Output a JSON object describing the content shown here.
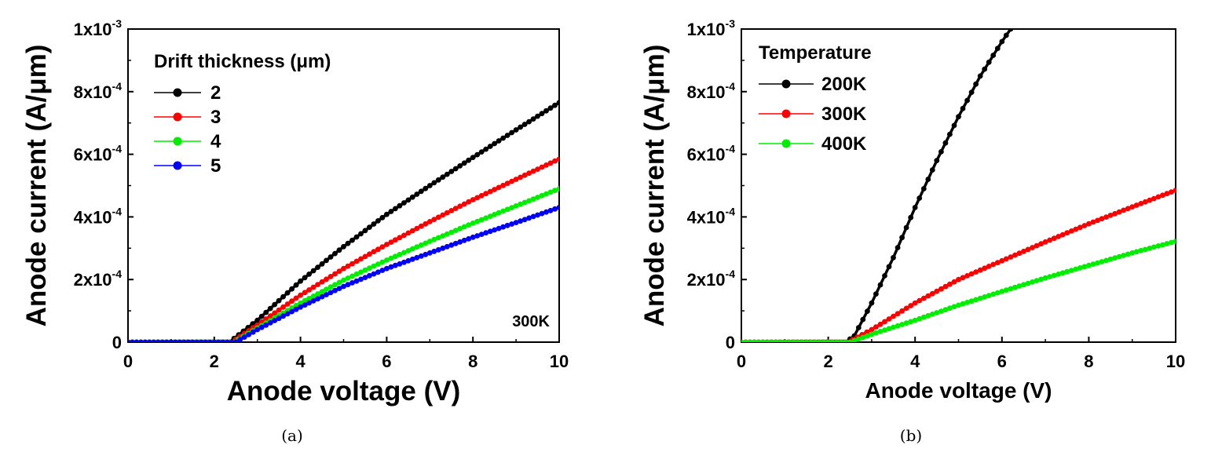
{
  "chart_data": [
    {
      "type": "line",
      "panel_label": "(a)",
      "xlabel": "Anode voltage (V)",
      "ylabel": "Anode current (A/μm)",
      "xlim": [
        0,
        10
      ],
      "ylim": [
        0,
        0.001
      ],
      "x_ticks": [
        "0",
        "2",
        "4",
        "6",
        "8",
        "10"
      ],
      "y_ticks": [
        {
          "value": 0,
          "mantissa": "0",
          "exp": ""
        },
        {
          "value": 0.0002,
          "mantissa": "2x10",
          "exp": "-4"
        },
        {
          "value": 0.0004,
          "mantissa": "4x10",
          "exp": "-4"
        },
        {
          "value": 0.0006,
          "mantissa": "6x10",
          "exp": "-4"
        },
        {
          "value": 0.0008,
          "mantissa": "8x10",
          "exp": "-4"
        },
        {
          "value": 0.001,
          "mantissa": "1x10",
          "exp": "-3"
        }
      ],
      "legend_title": "Drift thickness (μm)",
      "legend_position": "top-left",
      "annotation": "300K",
      "series": [
        {
          "name": "2",
          "color": "#000000",
          "x": [
            0,
            2.35,
            3,
            4,
            5,
            6,
            7,
            8,
            9,
            10
          ],
          "y": [
            0,
            0,
            7e-05,
            0.000195,
            0.000305,
            0.000408,
            0.0005,
            0.00059,
            0.000678,
            0.000765
          ]
        },
        {
          "name": "3",
          "color": "#ff0000",
          "x": [
            0,
            2.4,
            3,
            4,
            5,
            6,
            7,
            8,
            9,
            10
          ],
          "y": [
            0,
            0,
            5.5e-05,
            0.00015,
            0.000235,
            0.000312,
            0.000385,
            0.000455,
            0.00052,
            0.000585
          ]
        },
        {
          "name": "4",
          "color": "#00ee00",
          "x": [
            0,
            2.45,
            3,
            4,
            5,
            6,
            7,
            8,
            9,
            10
          ],
          "y": [
            0,
            0,
            4.5e-05,
            0.000125,
            0.000198,
            0.000262,
            0.000322,
            0.00038,
            0.000435,
            0.00049
          ]
        },
        {
          "name": "5",
          "color": "#0000ff",
          "x": [
            0,
            2.5,
            3,
            4,
            5,
            6,
            7,
            8,
            9,
            10
          ],
          "y": [
            0,
            0,
            4e-05,
            0.000112,
            0.000178,
            0.000235,
            0.000285,
            0.000335,
            0.000382,
            0.00043
          ]
        }
      ]
    },
    {
      "type": "line",
      "panel_label": "(b)",
      "xlabel": "Anode voltage (V)",
      "ylabel": "Anode current (A/μm)",
      "xlim": [
        0,
        10
      ],
      "ylim": [
        0,
        0.001
      ],
      "x_ticks": [
        "0",
        "2",
        "4",
        "6",
        "8",
        "10"
      ],
      "y_ticks": [
        {
          "value": 0,
          "mantissa": "0",
          "exp": ""
        },
        {
          "value": 0.0002,
          "mantissa": "2x10",
          "exp": "-4"
        },
        {
          "value": 0.0004,
          "mantissa": "4x10",
          "exp": "-4"
        },
        {
          "value": 0.0006,
          "mantissa": "6x10",
          "exp": "-4"
        },
        {
          "value": 0.0008,
          "mantissa": "8x10",
          "exp": "-4"
        },
        {
          "value": 0.001,
          "mantissa": "1x10",
          "exp": "-3"
        }
      ],
      "legend_title": "Temperature",
      "legend_position": "top-left",
      "series": [
        {
          "name": "200K",
          "color": "#000000",
          "x": [
            0,
            2.4,
            2.6,
            3,
            3.5,
            4,
            4.5,
            5,
            5.5,
            6,
            6.2
          ],
          "y": [
            0,
            0,
            2e-05,
            0.000125,
            0.00027,
            0.00043,
            0.00058,
            0.00072,
            0.00085,
            0.00096,
            0.001
          ]
        },
        {
          "name": "300K",
          "color": "#ff0000",
          "x": [
            0,
            2.45,
            3,
            4,
            5,
            6,
            7,
            8,
            9,
            10
          ],
          "y": [
            0,
            0,
            4e-05,
            0.000125,
            0.0002,
            0.00026,
            0.00032,
            0.000378,
            0.000432,
            0.000485
          ]
        },
        {
          "name": "400K",
          "color": "#00ee00",
          "x": [
            0,
            2.5,
            3,
            4,
            5,
            6,
            7,
            8,
            9,
            10
          ],
          "y": [
            0,
            0,
            2.5e-05,
            7e-05,
            0.000118,
            0.000162,
            0.000205,
            0.000245,
            0.000285,
            0.000322
          ]
        }
      ]
    }
  ]
}
